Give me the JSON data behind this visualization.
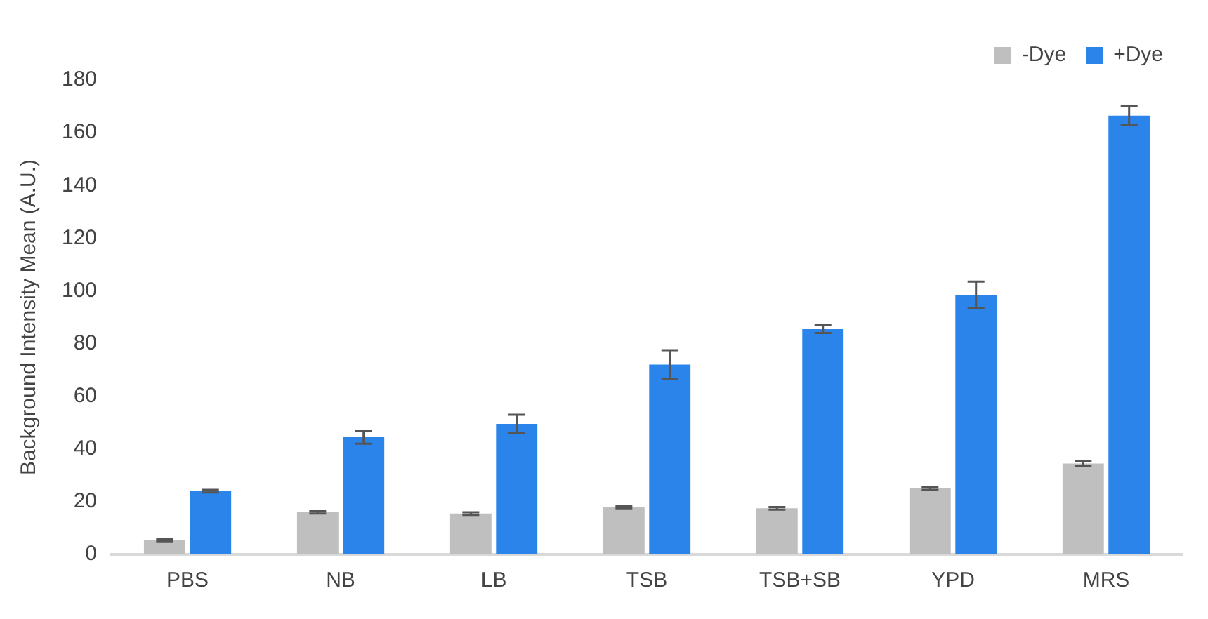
{
  "chart_data": {
    "type": "bar",
    "ylabel": "Background Intensity Mean (A.U.)",
    "categories": [
      "PBS",
      "NB",
      "LB",
      "TSB",
      "TSB+SB",
      "YPD",
      "MRS"
    ],
    "series": [
      {
        "name": "-Dye",
        "color": "#bfbfbf",
        "values": [
          5.5,
          16,
          15.5,
          18,
          17.5,
          25,
          34.5
        ],
        "errors": [
          0.5,
          0.5,
          0.5,
          0.5,
          0.5,
          0.5,
          1
        ]
      },
      {
        "name": "+Dye",
        "color": "#2a84ea",
        "values": [
          24,
          44.5,
          49.5,
          72,
          85.5,
          98.5,
          166.5
        ],
        "errors": [
          0.5,
          2.5,
          3.5,
          5.5,
          1.5,
          5,
          3.5
        ]
      }
    ],
    "ylim": [
      0,
      180
    ],
    "yticks": [
      0,
      20,
      40,
      60,
      80,
      100,
      120,
      140,
      160,
      180
    ],
    "grid": false,
    "legend": "top right"
  }
}
